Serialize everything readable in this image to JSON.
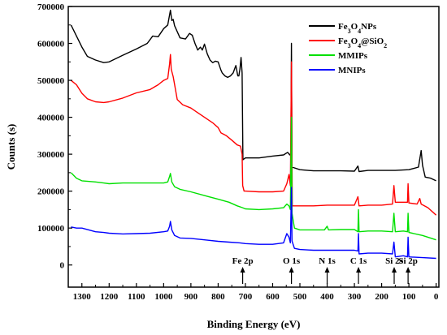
{
  "chart_data": {
    "type": "line",
    "title": "",
    "xlabel": "Binding Energy (eV)",
    "ylabel": "Counts (s)",
    "xlim": [
      1350,
      -10
    ],
    "ylim": [
      -60000,
      700000
    ],
    "x_reversed": true,
    "x_ticks": [
      "1300",
      "1200",
      "1100",
      "1000",
      "900",
      "800",
      "700",
      "600",
      "500",
      "400",
      "300",
      "200",
      "100",
      "0"
    ],
    "y_ticks": [
      "0",
      "100000",
      "200000",
      "300000",
      "400000",
      "500000",
      "600000",
      "700000"
    ],
    "legend": {
      "position": "top-right",
      "entries": [
        {
          "text": "Fe3O4NPs",
          "color": "#000000"
        },
        {
          "text": "Fe3O4@SiO2",
          "color": "#ff0000"
        },
        {
          "text": "MMIPs",
          "color": "#00e000"
        },
        {
          "text": "MNIPs",
          "color": "#0000ff"
        }
      ]
    },
    "annotations": [
      {
        "label": "Fe 2p",
        "x": 710
      },
      {
        "label": "O 1s",
        "x": 531
      },
      {
        "label": "N 1s",
        "x": 400
      },
      {
        "label": "C 1s",
        "x": 285
      },
      {
        "label": "Si 2s",
        "x": 154
      },
      {
        "label": "Si 2p",
        "x": 103
      }
    ],
    "series": [
      {
        "name": "Fe3O4NPs",
        "color": "#000000",
        "points": [
          [
            1340,
            650000
          ],
          [
            1320,
            620000
          ],
          [
            1300,
            590000
          ],
          [
            1280,
            565000
          ],
          [
            1250,
            555000
          ],
          [
            1220,
            548000
          ],
          [
            1200,
            550000
          ],
          [
            1150,
            568000
          ],
          [
            1100,
            585000
          ],
          [
            1060,
            600000
          ],
          [
            1040,
            620000
          ],
          [
            1020,
            618000
          ],
          [
            1000,
            640000
          ],
          [
            985,
            650000
          ],
          [
            975,
            690000
          ],
          [
            970,
            662000
          ],
          [
            965,
            665000
          ],
          [
            960,
            648000
          ],
          [
            940,
            615000
          ],
          [
            920,
            612000
          ],
          [
            905,
            627000
          ],
          [
            895,
            622000
          ],
          [
            885,
            600000
          ],
          [
            875,
            582000
          ],
          [
            865,
            590000
          ],
          [
            858,
            582000
          ],
          [
            850,
            598000
          ],
          [
            840,
            572000
          ],
          [
            830,
            555000
          ],
          [
            820,
            548000
          ],
          [
            810,
            552000
          ],
          [
            800,
            550000
          ],
          [
            790,
            528000
          ],
          [
            785,
            520000
          ],
          [
            775,
            512000
          ],
          [
            765,
            508000
          ],
          [
            755,
            512000
          ],
          [
            745,
            520000
          ],
          [
            735,
            540000
          ],
          [
            728,
            512000
          ],
          [
            724,
            512000
          ],
          [
            720,
            530000
          ],
          [
            716,
            562000
          ],
          [
            712,
            520000
          ],
          [
            709,
            285000
          ],
          [
            700,
            290000
          ],
          [
            650,
            290000
          ],
          [
            600,
            295000
          ],
          [
            560,
            298000
          ],
          [
            545,
            305000
          ],
          [
            537,
            298000
          ],
          [
            533,
            302000
          ],
          [
            531,
            600000
          ],
          [
            529,
            265000
          ],
          [
            500,
            258000
          ],
          [
            450,
            255000
          ],
          [
            400,
            255000
          ],
          [
            350,
            255000
          ],
          [
            300,
            254000
          ],
          [
            287,
            268000
          ],
          [
            283,
            253000
          ],
          [
            250,
            256000
          ],
          [
            200,
            256000
          ],
          [
            150,
            256000
          ],
          [
            100,
            258000
          ],
          [
            80,
            262000
          ],
          [
            65,
            265000
          ],
          [
            55,
            310000
          ],
          [
            50,
            270000
          ],
          [
            40,
            238000
          ],
          [
            20,
            235000
          ],
          [
            0,
            228000
          ]
        ]
      },
      {
        "name": "Fe3O4@SiO2",
        "color": "#ff0000",
        "points": [
          [
            1340,
            500000
          ],
          [
            1320,
            488000
          ],
          [
            1300,
            465000
          ],
          [
            1280,
            450000
          ],
          [
            1250,
            442000
          ],
          [
            1220,
            440000
          ],
          [
            1200,
            442000
          ],
          [
            1150,
            452000
          ],
          [
            1100,
            466000
          ],
          [
            1050,
            475000
          ],
          [
            1020,
            488000
          ],
          [
            1000,
            500000
          ],
          [
            985,
            505000
          ],
          [
            978,
            545000
          ],
          [
            975,
            570000
          ],
          [
            972,
            530000
          ],
          [
            965,
            510000
          ],
          [
            950,
            448000
          ],
          [
            930,
            434000
          ],
          [
            900,
            425000
          ],
          [
            880,
            415000
          ],
          [
            850,
            400000
          ],
          [
            820,
            385000
          ],
          [
            800,
            372000
          ],
          [
            790,
            358000
          ],
          [
            770,
            350000
          ],
          [
            750,
            338000
          ],
          [
            730,
            325000
          ],
          [
            718,
            322000
          ],
          [
            712,
            300000
          ],
          [
            710,
            215000
          ],
          [
            705,
            200000
          ],
          [
            700,
            200000
          ],
          [
            650,
            198000
          ],
          [
            600,
            198000
          ],
          [
            560,
            200000
          ],
          [
            548,
            220000
          ],
          [
            540,
            245000
          ],
          [
            535,
            215000
          ],
          [
            531,
            550000
          ],
          [
            528,
            160000
          ],
          [
            500,
            160000
          ],
          [
            450,
            160000
          ],
          [
            400,
            162000
          ],
          [
            350,
            162000
          ],
          [
            300,
            162000
          ],
          [
            287,
            185000
          ],
          [
            283,
            160000
          ],
          [
            250,
            162000
          ],
          [
            200,
            162000
          ],
          [
            160,
            165000
          ],
          [
            155,
            215000
          ],
          [
            150,
            170000
          ],
          [
            120,
            170000
          ],
          [
            105,
            170000
          ],
          [
            103,
            220000
          ],
          [
            100,
            168000
          ],
          [
            70,
            165000
          ],
          [
            60,
            180000
          ],
          [
            55,
            165000
          ],
          [
            30,
            155000
          ],
          [
            0,
            135000
          ]
        ]
      },
      {
        "name": "MMIPs",
        "color": "#00e000",
        "points": [
          [
            1340,
            250000
          ],
          [
            1320,
            235000
          ],
          [
            1300,
            228000
          ],
          [
            1250,
            225000
          ],
          [
            1220,
            222000
          ],
          [
            1200,
            220000
          ],
          [
            1150,
            222000
          ],
          [
            1100,
            222000
          ],
          [
            1050,
            222000
          ],
          [
            1000,
            222000
          ],
          [
            985,
            225000
          ],
          [
            978,
            240000
          ],
          [
            975,
            248000
          ],
          [
            970,
            225000
          ],
          [
            960,
            212000
          ],
          [
            940,
            205000
          ],
          [
            900,
            198000
          ],
          [
            850,
            188000
          ],
          [
            800,
            178000
          ],
          [
            760,
            170000
          ],
          [
            730,
            160000
          ],
          [
            710,
            155000
          ],
          [
            700,
            152000
          ],
          [
            650,
            150000
          ],
          [
            600,
            152000
          ],
          [
            560,
            155000
          ],
          [
            548,
            165000
          ],
          [
            540,
            160000
          ],
          [
            535,
            150000
          ],
          [
            531,
            400000
          ],
          [
            529,
            140000
          ],
          [
            520,
            100000
          ],
          [
            500,
            95000
          ],
          [
            450,
            95000
          ],
          [
            410,
            95000
          ],
          [
            400,
            105000
          ],
          [
            395,
            95000
          ],
          [
            350,
            96000
          ],
          [
            300,
            96000
          ],
          [
            287,
            90000
          ],
          [
            285,
            150000
          ],
          [
            283,
            90000
          ],
          [
            250,
            92000
          ],
          [
            200,
            92000
          ],
          [
            160,
            90000
          ],
          [
            155,
            140000
          ],
          [
            150,
            90000
          ],
          [
            120,
            92000
          ],
          [
            105,
            90000
          ],
          [
            103,
            140000
          ],
          [
            100,
            88000
          ],
          [
            50,
            80000
          ],
          [
            0,
            68000
          ]
        ]
      },
      {
        "name": "MNIPs",
        "color": "#0000ff",
        "points": [
          [
            1340,
            103000
          ],
          [
            1320,
            100000
          ],
          [
            1300,
            100000
          ],
          [
            1250,
            90000
          ],
          [
            1220,
            88000
          ],
          [
            1200,
            86000
          ],
          [
            1150,
            84000
          ],
          [
            1100,
            85000
          ],
          [
            1050,
            86000
          ],
          [
            1000,
            90000
          ],
          [
            985,
            92000
          ],
          [
            978,
            105000
          ],
          [
            975,
            118000
          ],
          [
            970,
            95000
          ],
          [
            960,
            80000
          ],
          [
            940,
            73000
          ],
          [
            900,
            72000
          ],
          [
            850,
            68000
          ],
          [
            800,
            64000
          ],
          [
            760,
            62000
          ],
          [
            720,
            60000
          ],
          [
            700,
            58000
          ],
          [
            650,
            56000
          ],
          [
            600,
            56000
          ],
          [
            560,
            60000
          ],
          [
            548,
            85000
          ],
          [
            540,
            75000
          ],
          [
            535,
            60000
          ],
          [
            531,
            210000
          ],
          [
            529,
            65000
          ],
          [
            520,
            45000
          ],
          [
            500,
            42000
          ],
          [
            450,
            40000
          ],
          [
            400,
            40000
          ],
          [
            350,
            40000
          ],
          [
            300,
            40000
          ],
          [
            287,
            38000
          ],
          [
            285,
            85000
          ],
          [
            283,
            30000
          ],
          [
            250,
            32000
          ],
          [
            200,
            32000
          ],
          [
            160,
            30000
          ],
          [
            155,
            62000
          ],
          [
            150,
            22000
          ],
          [
            120,
            25000
          ],
          [
            105,
            22000
          ],
          [
            103,
            75000
          ],
          [
            100,
            22000
          ],
          [
            50,
            20000
          ],
          [
            0,
            18000
          ]
        ]
      }
    ]
  }
}
